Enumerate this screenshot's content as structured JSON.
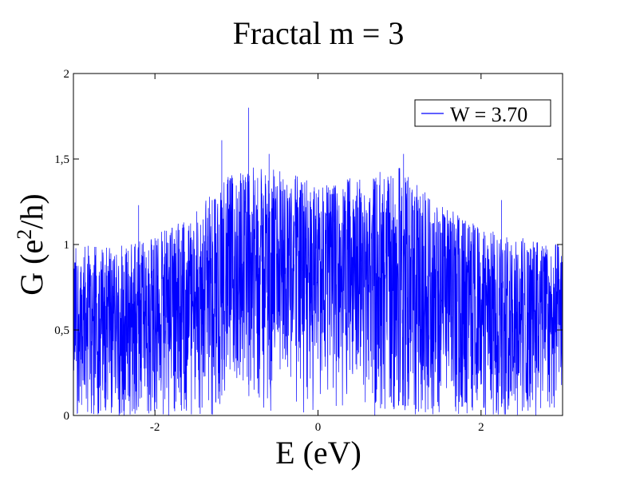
{
  "chart_data": {
    "type": "line",
    "title": "Fractal m = 3",
    "xlabel": "E (eV)",
    "ylabel_main": "G (e",
    "ylabel_sup": "2",
    "ylabel_tail": "/h)",
    "xlim": [
      -3,
      3
    ],
    "ylim": [
      0,
      2
    ],
    "x_ticks": [
      -2,
      0,
      2
    ],
    "x_tick_labels": [
      "-2",
      "0",
      "2"
    ],
    "y_ticks": [
      0,
      0.5,
      1,
      1.5,
      2
    ],
    "y_tick_labels": [
      "0",
      "0,5",
      "1",
      "1,5",
      "2"
    ],
    "grid": false,
    "legend": {
      "position": "top-right"
    },
    "series": [
      {
        "name": "W = 3.70",
        "color": "#0000ff",
        "envelope_x": [
          -3.0,
          -2.5,
          -2.0,
          -1.5,
          -1.0,
          -0.5,
          0.0,
          0.5,
          1.0,
          1.5,
          2.0,
          2.5,
          3.0
        ],
        "envelope_low": [
          0.05,
          0.05,
          0.05,
          0.06,
          0.15,
          0.25,
          0.35,
          0.22,
          0.12,
          0.06,
          0.05,
          0.05,
          0.05
        ],
        "envelope_high": [
          1.0,
          1.0,
          1.05,
          1.2,
          1.45,
          1.45,
          1.35,
          1.4,
          1.45,
          1.25,
          1.1,
          1.05,
          1.0
        ],
        "peaks": [
          {
            "x": -0.85,
            "y": 1.8
          },
          {
            "x": -1.18,
            "y": 1.61
          },
          {
            "x": -0.6,
            "y": 1.53
          },
          {
            "x": 1.05,
            "y": 1.53
          },
          {
            "x": -2.2,
            "y": 1.23
          },
          {
            "x": 2.25,
            "y": 1.26
          }
        ]
      }
    ]
  }
}
